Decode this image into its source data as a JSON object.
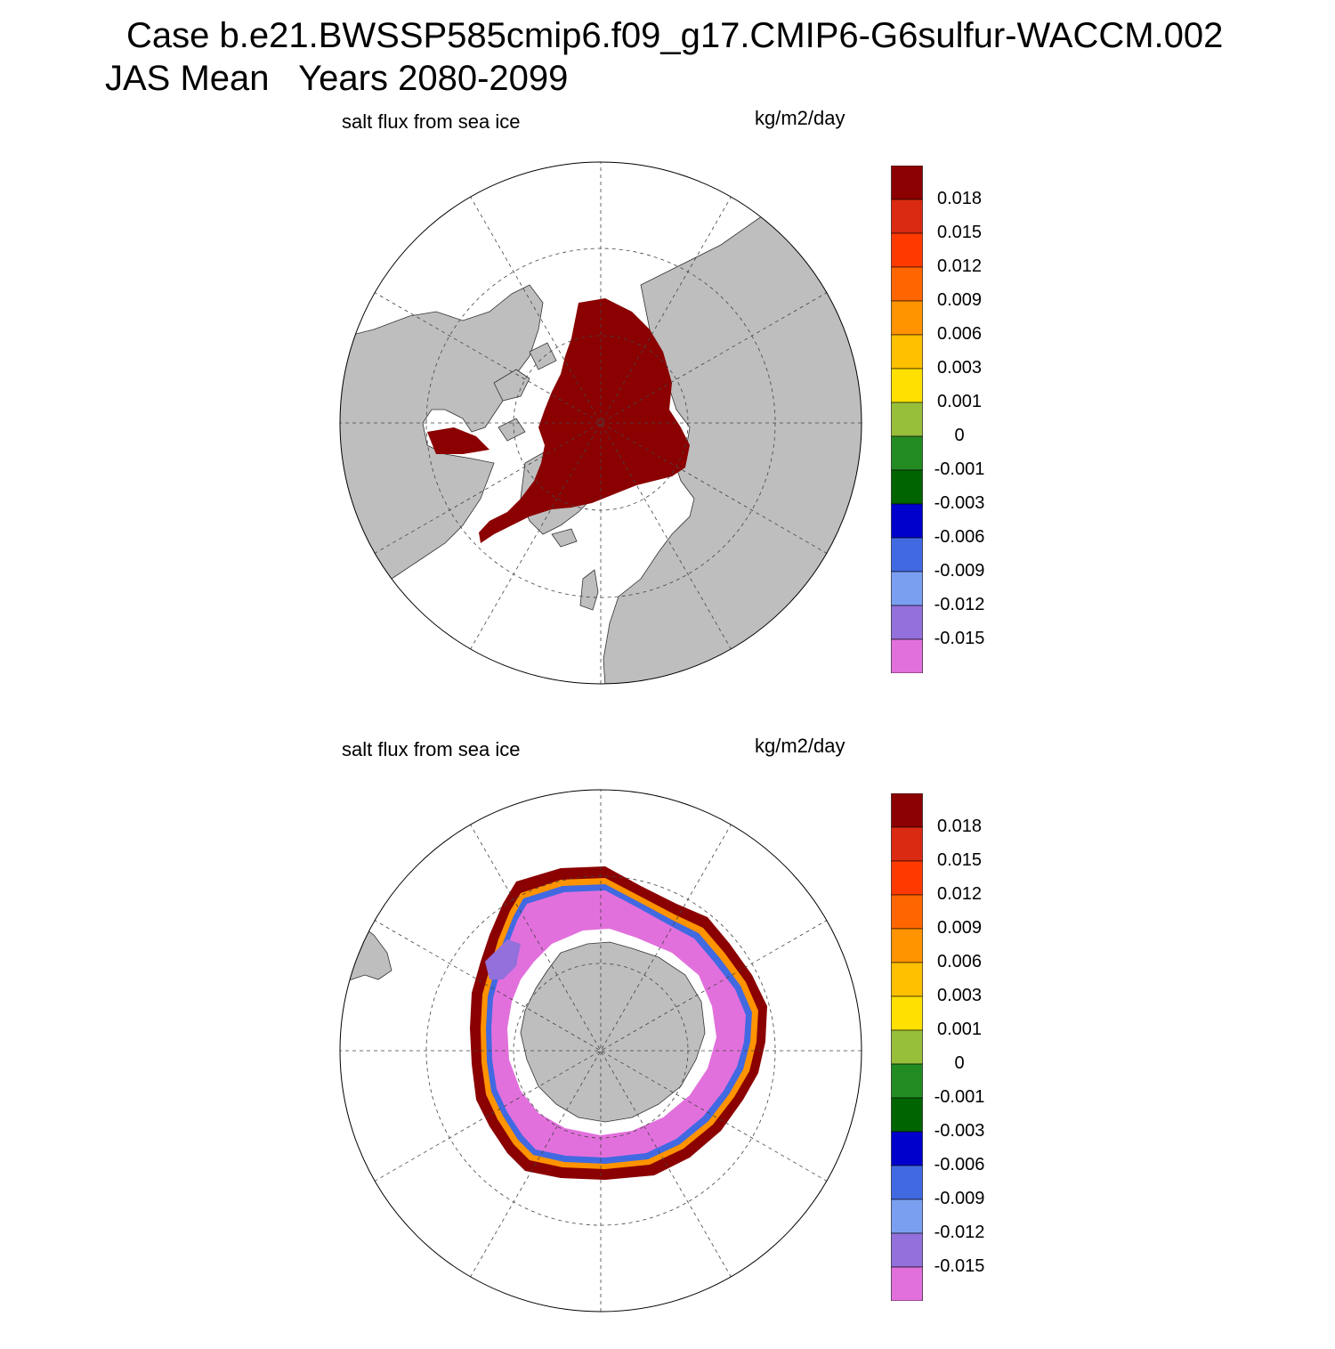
{
  "header": {
    "case_title": "Case b.e21.BWSSP585cmip6.f09_g17.CMIP6-G6sulfur-WACCM.002",
    "season_title": "JAS Mean   Years 2080-2099"
  },
  "panels": [
    {
      "title": "salt flux from sea ice",
      "units": "kg/m2/day",
      "hemisphere": "north"
    },
    {
      "title": "salt flux from sea ice",
      "units": "kg/m2/day",
      "hemisphere": "south"
    }
  ],
  "colorbar": {
    "labels": [
      "0.018",
      "0.015",
      "0.012",
      "0.009",
      "0.006",
      "0.003",
      "0.001",
      "0",
      "-0.001",
      "-0.003",
      "-0.006",
      "-0.009",
      "-0.012",
      "-0.015"
    ],
    "colors": [
      "#8b0000",
      "#da2a12",
      "#ff3a00",
      "#ff6600",
      "#ff9300",
      "#ffc000",
      "#ffe000",
      "#97bf3a",
      "#228b22",
      "#006400",
      "#0000cd",
      "#4169e1",
      "#7b9ff0",
      "#9370db",
      "#e270dc"
    ]
  },
  "map_colors": {
    "land": "#bebebe",
    "ocean": "#ffffff",
    "coast": "#333333",
    "grid": "#444444"
  }
}
